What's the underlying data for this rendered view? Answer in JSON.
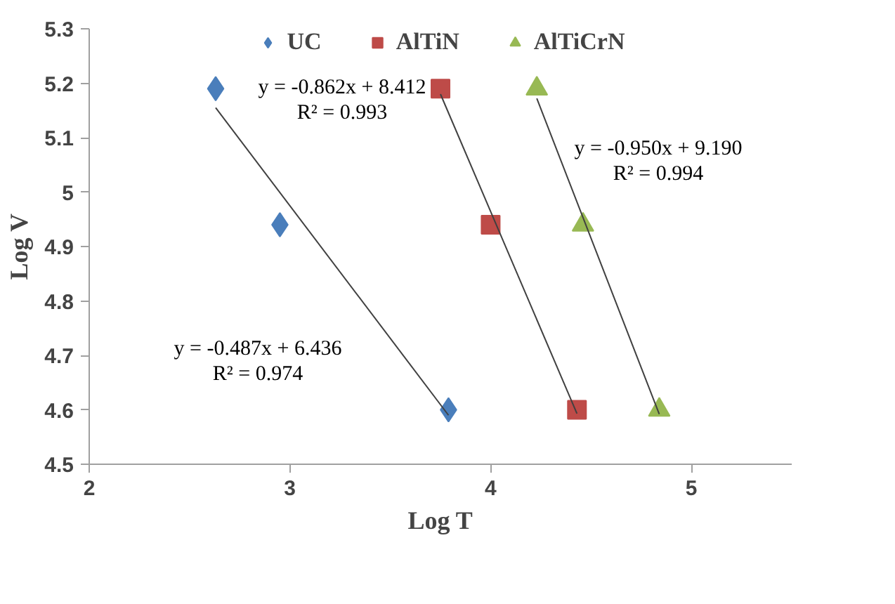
{
  "chart_data": {
    "type": "scatter",
    "xlabel": "Log T",
    "ylabel": "Log V",
    "xlim": [
      2,
      5.5
    ],
    "ylim": [
      4.5,
      5.3
    ],
    "xticks": [
      2,
      3,
      4,
      5
    ],
    "yticks": [
      4.5,
      4.6,
      4.7,
      4.8,
      4.9,
      5,
      5.1,
      5.2,
      5.3
    ],
    "grid": false,
    "legend": "top",
    "series": [
      {
        "name": "UC",
        "color": "#4a7ebb",
        "marker": "diamond",
        "x": [
          2.63,
          2.95,
          3.79
        ],
        "values": [
          5.19,
          4.94,
          4.6
        ]
      },
      {
        "name": "AlTiN",
        "color": "#be4b48",
        "marker": "square",
        "x": [
          3.75,
          4.0,
          4.43
        ],
        "values": [
          5.19,
          4.94,
          4.6
        ]
      },
      {
        "name": "AlTiCrN",
        "color": "#98b954",
        "marker": "triangle",
        "x": [
          4.23,
          4.46,
          4.84
        ],
        "values": [
          5.19,
          4.94,
          4.6
        ]
      },
      {
        "type": "line",
        "color": "#404040",
        "x": [
          2.63,
          3.79
        ],
        "values": [
          5.155,
          4.59
        ]
      },
      {
        "type": "line",
        "color": "#404040",
        "x": [
          3.75,
          4.43
        ],
        "values": [
          5.18,
          4.593
        ]
      },
      {
        "type": "line",
        "color": "#404040",
        "x": [
          4.23,
          4.84
        ],
        "values": [
          5.172,
          4.592
        ]
      }
    ],
    "annotations": [
      "y = -0.487x + 6.436\nR² = 0.974",
      "y = -0.862x + 8.412\nR² = 0.993",
      "y = -0.950x + 9.190\nR² = 0.994"
    ]
  }
}
